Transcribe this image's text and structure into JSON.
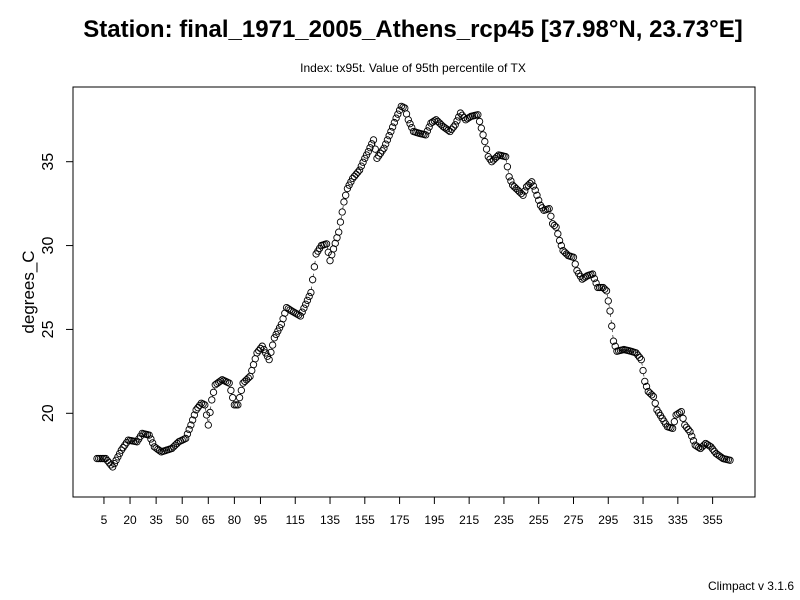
{
  "chart_data": {
    "type": "scatter",
    "title": "Station: final_1971_2005_Athens_rcp45 [37.98°N, 23.73°E]",
    "subtitle": "Index: tx95t. Value of 95th percentile of TX",
    "xlabel": "",
    "ylabel": "degrees_C",
    "xlim": [
      1,
      365
    ],
    "ylim": [
      16.5,
      38.5
    ],
    "x_ticks": [
      5,
      20,
      35,
      50,
      65,
      80,
      95,
      115,
      135,
      155,
      175,
      195,
      215,
      235,
      255,
      275,
      295,
      315,
      335,
      355
    ],
    "y_ticks": [
      20,
      25,
      30,
      35
    ],
    "grid": false,
    "legend": "none",
    "connect_points": true,
    "anchors": [
      [
        1,
        17.3
      ],
      [
        6,
        17.3
      ],
      [
        10,
        16.8
      ],
      [
        15,
        17.8
      ],
      [
        19,
        18.4
      ],
      [
        24,
        18.3
      ],
      [
        27,
        18.8
      ],
      [
        31,
        18.7
      ],
      [
        34,
        18.0
      ],
      [
        38,
        17.7
      ],
      [
        44,
        17.9
      ],
      [
        48,
        18.3
      ],
      [
        52,
        18.5
      ],
      [
        55,
        19.3
      ],
      [
        58,
        20.2
      ],
      [
        61,
        20.6
      ],
      [
        63,
        20.5
      ],
      [
        65,
        19.3
      ],
      [
        67,
        20.8
      ],
      [
        69,
        21.7
      ],
      [
        73,
        22.0
      ],
      [
        77,
        21.8
      ],
      [
        80,
        20.5
      ],
      [
        82,
        20.5
      ],
      [
        85,
        21.8
      ],
      [
        89,
        22.2
      ],
      [
        93,
        23.6
      ],
      [
        96,
        24.0
      ],
      [
        100,
        23.2
      ],
      [
        103,
        24.5
      ],
      [
        107,
        25.3
      ],
      [
        110,
        26.3
      ],
      [
        113,
        26.1
      ],
      [
        118,
        25.8
      ],
      [
        121,
        26.5
      ],
      [
        124,
        27.2
      ],
      [
        127,
        29.5
      ],
      [
        130,
        30.0
      ],
      [
        133,
        30.1
      ],
      [
        135,
        29.1
      ],
      [
        137,
        29.8
      ],
      [
        140,
        30.8
      ],
      [
        143,
        32.6
      ],
      [
        145,
        33.4
      ],
      [
        148,
        34.0
      ],
      [
        152,
        34.5
      ],
      [
        155,
        35.2
      ],
      [
        157,
        35.6
      ],
      [
        160,
        36.3
      ],
      [
        162,
        35.2
      ],
      [
        166,
        35.8
      ],
      [
        170,
        36.8
      ],
      [
        173,
        37.6
      ],
      [
        176,
        38.3
      ],
      [
        178,
        38.2
      ],
      [
        180,
        37.5
      ],
      [
        183,
        36.8
      ],
      [
        186,
        36.7
      ],
      [
        190,
        36.6
      ],
      [
        193,
        37.3
      ],
      [
        196,
        37.5
      ],
      [
        200,
        37.1
      ],
      [
        204,
        36.8
      ],
      [
        207,
        37.2
      ],
      [
        210,
        37.9
      ],
      [
        213,
        37.5
      ],
      [
        216,
        37.7
      ],
      [
        220,
        37.8
      ],
      [
        222,
        37.0
      ],
      [
        224,
        36.2
      ],
      [
        226,
        35.3
      ],
      [
        228,
        35.0
      ],
      [
        232,
        35.4
      ],
      [
        236,
        35.3
      ],
      [
        238,
        34.1
      ],
      [
        240,
        33.6
      ],
      [
        244,
        33.2
      ],
      [
        246,
        33.0
      ],
      [
        248,
        33.5
      ],
      [
        251,
        33.8
      ],
      [
        253,
        33.3
      ],
      [
        256,
        32.4
      ],
      [
        258,
        32.1
      ],
      [
        261,
        32.2
      ],
      [
        263,
        31.3
      ],
      [
        265,
        31.1
      ],
      [
        267,
        30.3
      ],
      [
        269,
        29.7
      ],
      [
        272,
        29.4
      ],
      [
        275,
        29.3
      ],
      [
        277,
        28.5
      ],
      [
        280,
        28.0
      ],
      [
        283,
        28.2
      ],
      [
        286,
        28.3
      ],
      [
        289,
        27.5
      ],
      [
        292,
        27.5
      ],
      [
        294,
        27.3
      ],
      [
        296,
        26.1
      ],
      [
        298,
        24.3
      ],
      [
        300,
        23.7
      ],
      [
        304,
        23.8
      ],
      [
        308,
        23.7
      ],
      [
        311,
        23.6
      ],
      [
        314,
        23.2
      ],
      [
        316,
        21.9
      ],
      [
        318,
        21.3
      ],
      [
        321,
        21.0
      ],
      [
        323,
        20.2
      ],
      [
        326,
        19.7
      ],
      [
        329,
        19.2
      ],
      [
        332,
        19.1
      ],
      [
        334,
        19.9
      ],
      [
        337,
        20.1
      ],
      [
        339,
        19.3
      ],
      [
        342,
        18.9
      ],
      [
        345,
        18.1
      ],
      [
        348,
        17.9
      ],
      [
        351,
        18.2
      ],
      [
        354,
        18.0
      ],
      [
        357,
        17.6
      ],
      [
        361,
        17.3
      ],
      [
        365,
        17.2
      ]
    ]
  },
  "footer": {
    "version": "Climpact v 3.1.6"
  }
}
